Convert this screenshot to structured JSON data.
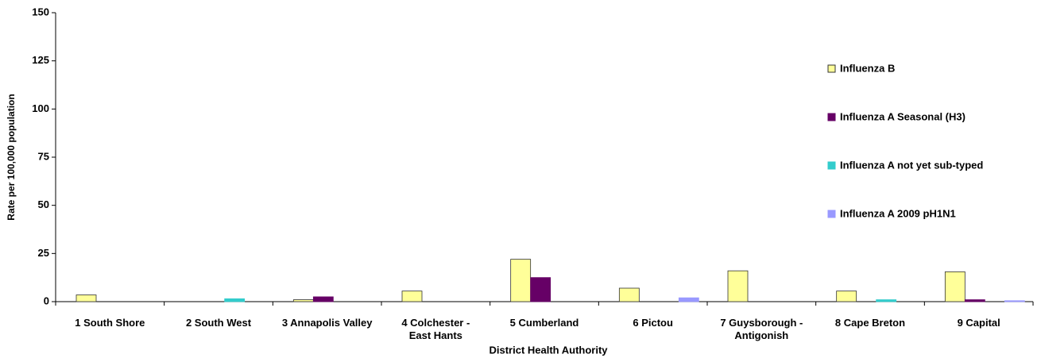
{
  "chart_data": {
    "type": "bar",
    "x_label": "District Health Authority",
    "y_label": "Rate per 100,000 population",
    "categories": [
      "1 South Shore",
      "2 South West",
      "3 Annapolis Valley",
      "4 Colchester - East Hants",
      "5 Cumberland",
      "6 Pictou",
      "7 Guysborough - Antigonish",
      "8 Cape Breton",
      "9 Capital"
    ],
    "series": [
      {
        "name": "Influenza B",
        "color": "#ffff99",
        "values": [
          3.5,
          0,
          1,
          5.5,
          22,
          7,
          16,
          5.5,
          15.5
        ]
      },
      {
        "name": "Influenza A Seasonal (H3)",
        "color": "#660066",
        "values": [
          0,
          0,
          2.5,
          0,
          12.5,
          0,
          0,
          0,
          1
        ]
      },
      {
        "name": "Influenza A not yet sub-typed",
        "color": "#33cccc",
        "values": [
          0,
          1.5,
          0,
          0,
          0,
          0,
          0,
          1,
          0
        ]
      },
      {
        "name": "Influenza A 2009 pH1N1",
        "color": "#9999ff",
        "values": [
          0,
          0,
          0,
          0,
          0,
          2,
          0,
          0,
          0.5
        ]
      }
    ],
    "ylim": [
      0,
      150
    ],
    "yticks": [
      0,
      25,
      50,
      75,
      100,
      125,
      150
    ],
    "legend": "right"
  }
}
